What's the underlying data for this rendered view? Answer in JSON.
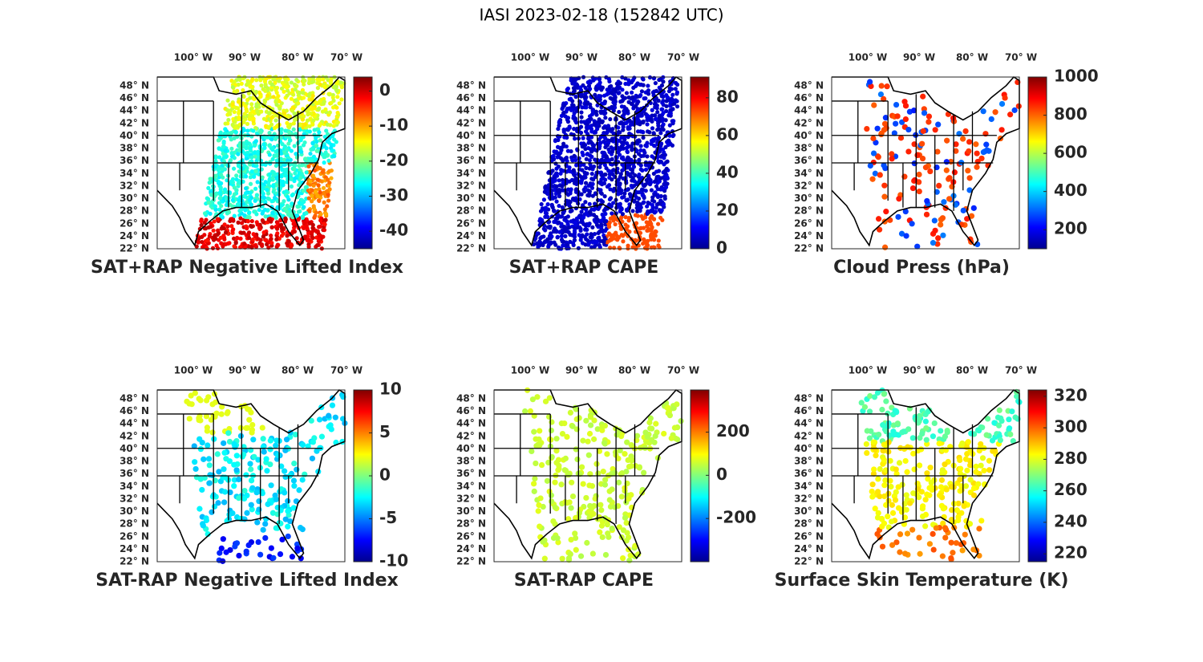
{
  "title": "IASI 2023-02-18 (152842 UTC)",
  "panels": [
    {
      "title": "SAT+RAP Negative Lifted Index",
      "lon_labels": [
        "100° W",
        "90° W",
        "80° W",
        "70° W"
      ],
      "lat_labels": [
        "48° N",
        "46° N",
        "44° N",
        "42° N",
        "40° N",
        "38° N",
        "36° N",
        "34° N",
        "32° N",
        "30° N",
        "28° N",
        "26° N",
        "24° N",
        "22° N"
      ],
      "colorbar": {
        "range": [
          -45,
          4
        ],
        "ticks": [
          0,
          -10,
          -20,
          -30,
          -40
        ]
      }
    },
    {
      "title": "SAT+RAP CAPE",
      "lon_labels": [
        "100° W",
        "90° W",
        "80° W",
        "70° W"
      ],
      "lat_labels": [
        "48° N",
        "46° N",
        "44° N",
        "42° N",
        "40° N",
        "38° N",
        "36° N",
        "34° N",
        "32° N",
        "30° N",
        "28° N",
        "26° N",
        "24° N",
        "22° N"
      ],
      "colorbar": {
        "range": [
          0,
          91
        ],
        "ticks": [
          80,
          60,
          40,
          20,
          0
        ]
      }
    },
    {
      "title": "Cloud Press (hPa)",
      "lon_labels": [
        "100° W",
        "90° W",
        "80° W",
        "70° W"
      ],
      "lat_labels": [
        "48° N",
        "46° N",
        "44° N",
        "42° N",
        "40° N",
        "38° N",
        "36° N",
        "34° N",
        "32° N",
        "30° N",
        "28° N",
        "26° N",
        "24° N",
        "22° N"
      ],
      "colorbar": {
        "range": [
          100,
          1000
        ],
        "ticks": [
          1000,
          800,
          600,
          400,
          200
        ]
      }
    },
    {
      "title": "SAT-RAP Negative Lifted Index",
      "lon_labels": [
        "100° W",
        "90° W",
        "80° W",
        "70° W"
      ],
      "lat_labels": [
        "48° N",
        "46° N",
        "44° N",
        "42° N",
        "40° N",
        "38° N",
        "36° N",
        "34° N",
        "32° N",
        "30° N",
        "28° N",
        "26° N",
        "24° N",
        "22° N"
      ],
      "colorbar": {
        "range": [
          -10,
          10
        ],
        "ticks": [
          10,
          5,
          0,
          -5,
          -10
        ]
      }
    },
    {
      "title": "SAT-RAP CAPE",
      "lon_labels": [
        "100° W",
        "90° W",
        "80° W",
        "70° W"
      ],
      "lat_labels": [
        "48° N",
        "46° N",
        "44° N",
        "42° N",
        "40° N",
        "38° N",
        "36° N",
        "34° N",
        "32° N",
        "30° N",
        "28° N",
        "26° N",
        "24° N",
        "22° N"
      ],
      "colorbar": {
        "range": [
          -400,
          395
        ],
        "ticks": [
          200,
          0,
          -200
        ]
      }
    },
    {
      "title": "Surface Skin Temperature (K)",
      "lon_labels": [
        "100° W",
        "90° W",
        "80° W",
        "70° W"
      ],
      "lat_labels": [
        "48° N",
        "46° N",
        "44° N",
        "42° N",
        "40° N",
        "38° N",
        "36° N",
        "34° N",
        "32° N",
        "30° N",
        "28° N",
        "26° N",
        "24° N",
        "22° N"
      ],
      "colorbar": {
        "range": [
          215,
          324
        ],
        "ticks": [
          320,
          300,
          280,
          260,
          240,
          220
        ]
      }
    }
  ]
}
